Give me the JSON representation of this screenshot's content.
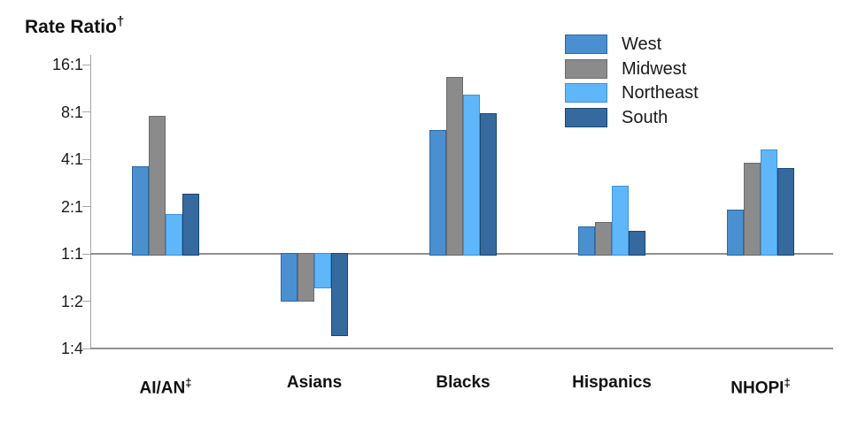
{
  "chart_data": {
    "type": "bar",
    "title": "Rate Ratio",
    "title_sup": "†",
    "scale": "log2",
    "baseline_value": 1,
    "legend_position": "top-right",
    "grid": false,
    "categories": [
      {
        "label": "AI/AN",
        "sup": "‡"
      },
      {
        "label": "Asians",
        "sup": ""
      },
      {
        "label": "Blacks",
        "sup": ""
      },
      {
        "label": "Hispanics",
        "sup": ""
      },
      {
        "label": "NHOPI",
        "sup": "‡"
      }
    ],
    "series": [
      {
        "name": "West",
        "color": "#4A90D0",
        "border_color": "#2B69A5",
        "values": [
          3.6,
          0.5,
          6.1,
          1.5,
          1.9
        ]
      },
      {
        "name": "Midwest",
        "color": "#8B8B8B",
        "border_color": "#6B6B6B",
        "values": [
          7.5,
          0.5,
          13.4,
          1.6,
          3.8
        ]
      },
      {
        "name": "Northeast",
        "color": "#5FB7FA",
        "border_color": "#3E92DB",
        "values": [
          1.8,
          0.6,
          10.3,
          2.7,
          4.6
        ]
      },
      {
        "name": "South",
        "color": "#366A9E",
        "border_color": "#1C4671",
        "values": [
          2.4,
          0.3,
          7.8,
          1.4,
          3.5
        ]
      }
    ],
    "yticks": [
      {
        "label": "16:1",
        "value": 16
      },
      {
        "label": "8:1",
        "value": 8
      },
      {
        "label": "4:1",
        "value": 4
      },
      {
        "label": "2:1",
        "value": 2
      },
      {
        "label": "1:1",
        "value": 1
      },
      {
        "label": "1:2",
        "value": 0.5
      },
      {
        "label": "1:4",
        "value": 0.25
      }
    ],
    "ylim_ratio": [
      0.25,
      16
    ],
    "axis_color": "#A6A6A6",
    "line_color": "#919191",
    "text_color": "#1A1A1A"
  }
}
